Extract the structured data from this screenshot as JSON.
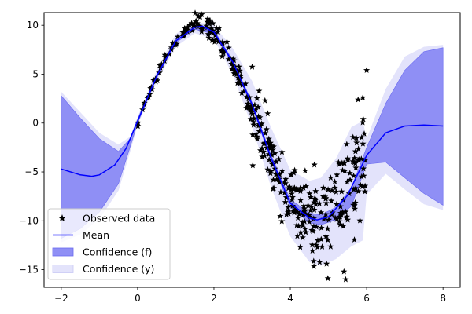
{
  "chart_data": {
    "type": "line",
    "title": "",
    "xlabel": "",
    "ylabel": "",
    "xlim": [
      -2.45,
      8.45
    ],
    "ylim": [
      -16.8,
      11.3
    ],
    "x_ticks": [
      -2,
      0,
      2,
      4,
      6,
      8
    ],
    "y_ticks": [
      10,
      5,
      0,
      -5,
      -10,
      -15
    ],
    "grid": false,
    "legend_position": "lower-left",
    "legend": [
      "Observed data",
      "Mean",
      "Confidence (f)",
      "Confidence (y)"
    ],
    "colors": {
      "observed": "#000000",
      "mean": "#0000ff",
      "confidence_f": "#8f8ff5",
      "confidence_y": "#e3e3fb"
    },
    "series": [
      {
        "name": "Mean",
        "x": [
          -2,
          -1.5,
          -1.2,
          -1,
          -0.6,
          -0.3,
          0,
          0.5,
          1,
          1.5,
          1.7,
          2,
          2.5,
          3,
          3.5,
          4,
          4.5,
          4.7,
          5,
          5.5,
          6,
          6.5,
          7,
          7.5,
          8
        ],
        "y": [
          -4.7,
          -5.3,
          -5.45,
          -5.3,
          -4.3,
          -2.6,
          0.2,
          4.8,
          8.4,
          9.8,
          9.9,
          9.3,
          6.2,
          1.9,
          -3.6,
          -8.2,
          -9.7,
          -9.9,
          -9.6,
          -7.4,
          -3.3,
          -1.0,
          -0.3,
          -0.2,
          -0.3
        ]
      },
      {
        "name": "Confidence (f)",
        "x": [
          -2,
          -1.5,
          -1,
          -0.5,
          -0.2,
          0,
          0.5,
          1,
          1.5,
          2,
          2.5,
          3,
          3.5,
          4,
          4.5,
          4.8,
          5.2,
          5.6,
          6,
          6.5,
          7,
          7.5,
          8
        ],
        "upper": [
          2.8,
          0.5,
          -1.6,
          -2.9,
          -1.6,
          0.4,
          5.0,
          8.6,
          10.0,
          9.5,
          6.4,
          2.1,
          -3.3,
          -7.8,
          -9.2,
          -9.4,
          -8.6,
          -6.6,
          -2.5,
          2.0,
          5.4,
          7.3,
          7.7
        ],
        "lower": [
          -11.8,
          -10.8,
          -9.1,
          -6.2,
          -2.5,
          0.0,
          4.6,
          8.2,
          9.6,
          9.1,
          6.0,
          1.7,
          -3.9,
          -8.6,
          -10.2,
          -10.4,
          -9.9,
          -8.5,
          -4.2,
          -4.0,
          -5.6,
          -7.2,
          -8.4
        ]
      },
      {
        "name": "Confidence (y)",
        "x": [
          -2,
          -1.5,
          -1,
          -0.5,
          -0.2,
          0,
          0.5,
          1,
          1.5,
          2,
          2.5,
          3,
          3.5,
          4,
          4.5,
          4.8,
          5.2,
          5.6,
          5.9,
          6,
          6.5,
          7,
          7.5,
          8
        ],
        "upper": [
          3.2,
          1.1,
          -1.0,
          -2.2,
          -1.4,
          0.6,
          5.4,
          9.1,
          10.4,
          10.0,
          7.6,
          4.3,
          -0.5,
          -4.8,
          -5.9,
          -5.6,
          -3.6,
          -0.4,
          0.2,
          -1.6,
          3.5,
          6.8,
          7.8,
          8.0
        ],
        "lower": [
          -12.2,
          -11.4,
          -9.8,
          -6.9,
          -3.0,
          -0.2,
          4.2,
          7.8,
          9.2,
          8.6,
          4.9,
          -0.4,
          -6.6,
          -11.6,
          -14.2,
          -14.6,
          -13.9,
          -12.6,
          -12.0,
          -7.3,
          -5.2,
          -6.8,
          -8.3,
          -8.9
        ]
      }
    ],
    "scatter_note": "Observed data: ~400 noisy samples of a sinusoid over x in [0, 6]; noise grows with x",
    "observed_segments": [
      {
        "x_range": [
          0,
          1.5
        ],
        "n": 55,
        "noise": 0.25,
        "amp": 10.0,
        "period": 6.28
      },
      {
        "x_range": [
          1.5,
          3
        ],
        "n": 90,
        "noise": 0.6,
        "amp": 10.0,
        "period": 6.28
      },
      {
        "x_range": [
          3,
          4.5
        ],
        "n": 130,
        "noise": 1.6,
        "amp": 10.0,
        "period": 6.28
      },
      {
        "x_range": [
          4.5,
          6
        ],
        "n": 125,
        "noise": 2.6,
        "amp": 10.0,
        "period": 6.28
      }
    ],
    "observed_outliers": [
      {
        "x": 6.0,
        "y": 5.4
      },
      {
        "x": 5.9,
        "y": 2.6
      },
      {
        "x": 5.45,
        "y": -16.0
      },
      {
        "x": 4.95,
        "y": -14.4
      }
    ]
  }
}
